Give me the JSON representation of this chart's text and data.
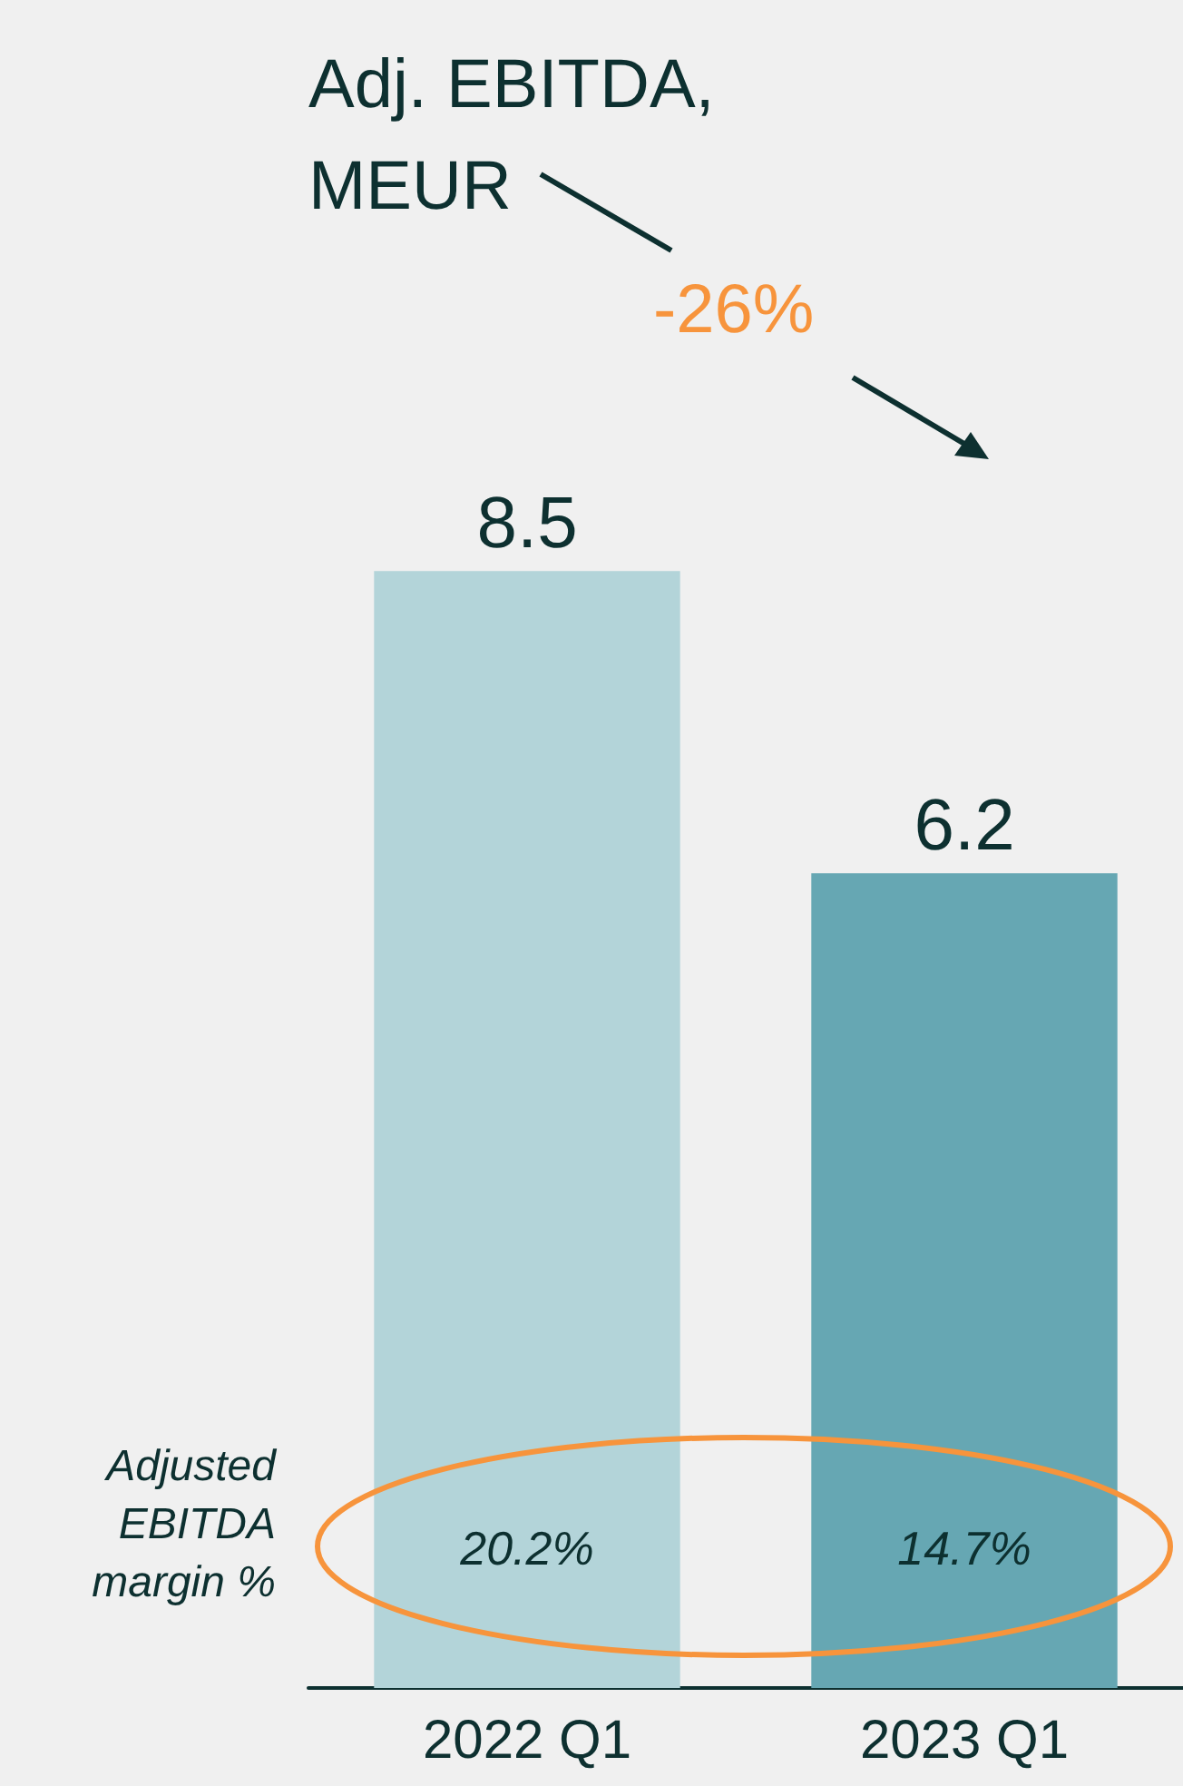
{
  "chart_data": {
    "type": "bar",
    "title": "Adj. EBITDA,\nMEUR",
    "categories": [
      "2022 Q1",
      "2023 Q1"
    ],
    "values": [
      8.5,
      6.2
    ],
    "colors": [
      "#b3d4d9",
      "#66a7b3"
    ],
    "data_labels": true,
    "annotations": [
      "-26%",
      "Adjusted\nEBITDA\nmargin %",
      "20.2%",
      "14.7%"
    ]
  }
}
